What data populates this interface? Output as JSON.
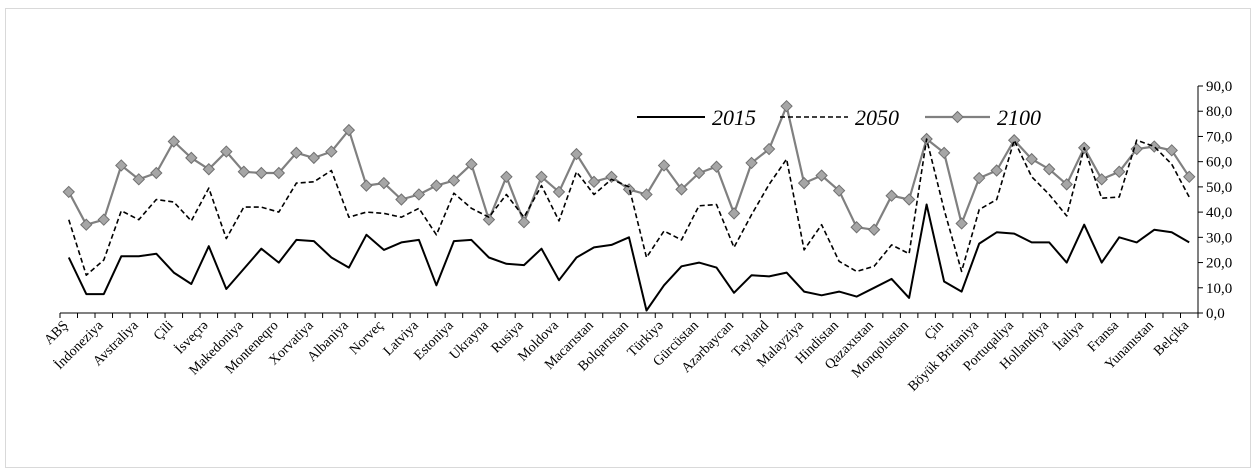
{
  "chart_data": {
    "type": "line",
    "categories": [
      "ABŞ",
      "",
      "İndoneziya",
      "",
      "Avstraliya",
      "",
      "Çili",
      "",
      "İsveçrə",
      "",
      "Makedoniya",
      "",
      "Monteneqro",
      "",
      "Xorvatiya",
      "",
      "Albaniya",
      "",
      "Norveç",
      "",
      "Latviya",
      "",
      "Estoniya",
      "",
      "Ukrayna",
      "",
      "Rusiya",
      "",
      "Moldova",
      "",
      "Macarıstan",
      "",
      "Bolqarıstan",
      "",
      "Türkiyə",
      "",
      "Gürcüstan",
      "",
      "Azərbaycan",
      "",
      "Tayland",
      "",
      "Malayziya",
      "",
      "Hindistan",
      "",
      "Qazaxıstan",
      "",
      "Monqolustan",
      "",
      "Çin",
      "",
      "Böyük Britaniya",
      "",
      "Portuqaliya",
      "",
      "Hollandiya",
      "",
      "İtaliya",
      "",
      "Fransa",
      "",
      "Yunanıstan",
      "",
      "Belçika"
    ],
    "series": [
      {
        "name": "2015",
        "style": "solid",
        "color": "#000000",
        "values": [
          22,
          7.5,
          7.5,
          22.5,
          22.5,
          23.5,
          16,
          11.5,
          26.5,
          9.5,
          17.5,
          25.5,
          20,
          29,
          28.5,
          22,
          18,
          31,
          25,
          28,
          29,
          11,
          28.5,
          29,
          22,
          19.5,
          19,
          25.5,
          13,
          22,
          26,
          27,
          30,
          1,
          11,
          18.5,
          20,
          18,
          8,
          15,
          14.5,
          16,
          8.5,
          7,
          8.5,
          6.5,
          10,
          13.5,
          6,
          43,
          12.5,
          8.5,
          27.5,
          32,
          31.5,
          28,
          28,
          20,
          35,
          20,
          30,
          28,
          33,
          32,
          28
        ]
      },
      {
        "name": "2050",
        "style": "dashed",
        "color": "#000000",
        "values": [
          37,
          15,
          21,
          40.5,
          37,
          45,
          44,
          36.5,
          49.5,
          29.5,
          42,
          42,
          40,
          51.5,
          52,
          56.5,
          38,
          40,
          39.5,
          38,
          41.5,
          31,
          47.5,
          41.5,
          38,
          47,
          38,
          50.5,
          36.5,
          56,
          47,
          53,
          50,
          22,
          32.5,
          29,
          42.5,
          43,
          26,
          39,
          51,
          61,
          25,
          35,
          20.5,
          16.5,
          18.5,
          27,
          23.5,
          69,
          41,
          16.5,
          41,
          45,
          68.5,
          54,
          47,
          38.5,
          65.5,
          45.5,
          46,
          68.5,
          66,
          59,
          46
        ]
      },
      {
        "name": "2100",
        "style": "markers",
        "color": "#808080",
        "marker_color": "#a6a6a6",
        "values": [
          48,
          35,
          37,
          58.5,
          53,
          55.5,
          68,
          61.5,
          57,
          64,
          56,
          55.5,
          55.5,
          63.5,
          61.5,
          64,
          72.5,
          50.5,
          51.5,
          45,
          47,
          50.5,
          52.5,
          59,
          37,
          54,
          36,
          54,
          48,
          63,
          52,
          54,
          49,
          47,
          58.5,
          49,
          55.5,
          58,
          39.5,
          59.5,
          65,
          82,
          51.5,
          54.5,
          48.5,
          34,
          33,
          46.5,
          45,
          69,
          63.5,
          35.5,
          53.5,
          56.5,
          68.5,
          61,
          57,
          51,
          65.5,
          53,
          56,
          65,
          66,
          64.5,
          54
        ]
      }
    ],
    "ylim": [
      0,
      90
    ],
    "yticks": [
      "0,0",
      "10,0",
      "20,0",
      "30,0",
      "40,0",
      "50,0",
      "60,0",
      "70,0",
      "80,0",
      "90,0"
    ],
    "y_axis_position": "right",
    "grid": false,
    "legend_position": "top-center"
  }
}
